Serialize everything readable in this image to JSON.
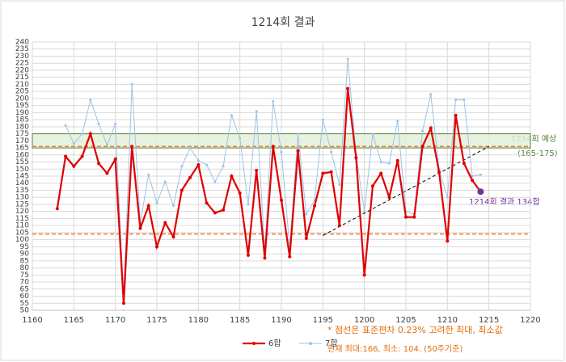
{
  "chart_data": {
    "type": "line",
    "title": "1214회 결과",
    "x": [
      1163,
      1164,
      1165,
      1166,
      1167,
      1168,
      1169,
      1170,
      1171,
      1172,
      1173,
      1174,
      1175,
      1176,
      1177,
      1178,
      1179,
      1180,
      1181,
      1182,
      1183,
      1184,
      1185,
      1186,
      1187,
      1188,
      1189,
      1190,
      1191,
      1192,
      1193,
      1194,
      1195,
      1196,
      1197,
      1198,
      1199,
      1200,
      1201,
      1202,
      1203,
      1204,
      1205,
      1206,
      1207,
      1208,
      1209,
      1210,
      1211,
      1212,
      1213,
      1214
    ],
    "series": [
      {
        "name": "6합",
        "color": "#e00000",
        "values": [
          122,
          159,
          152,
          159,
          175,
          154,
          147,
          157,
          55,
          166,
          108,
          124,
          95,
          112,
          102,
          135,
          144,
          153,
          126,
          119,
          121,
          145,
          133,
          89,
          149,
          87,
          166,
          128,
          88,
          163,
          101,
          124,
          147,
          148,
          110,
          207,
          158,
          75,
          138,
          147,
          130,
          156,
          116,
          116,
          166,
          179,
          148,
          99,
          188,
          154,
          142,
          134
        ]
      },
      {
        "name": "7합",
        "color": "#9dc3e6",
        "values": [
          null,
          181,
          168,
          175,
          199,
          182,
          167,
          182,
          60,
          210,
          112,
          146,
          126,
          141,
          124,
          152,
          165,
          156,
          153,
          141,
          152,
          188,
          172,
          125,
          191,
          92,
          198,
          162,
          95,
          175,
          118,
          128,
          185,
          162,
          139,
          228,
          160,
          120,
          175,
          155,
          154,
          184,
          120,
          118,
          177,
          203,
          150,
          130,
          199,
          199,
          145,
          146
        ]
      }
    ],
    "highlight_color": "#7030a0",
    "xlim": [
      1160,
      1220
    ],
    "xticks": [
      1160,
      1165,
      1170,
      1175,
      1180,
      1185,
      1190,
      1195,
      1200,
      1205,
      1210,
      1215,
      1220
    ],
    "ylim": [
      50,
      240
    ],
    "yticks": [
      50,
      55,
      60,
      65,
      70,
      75,
      80,
      85,
      90,
      95,
      100,
      105,
      110,
      115,
      120,
      125,
      130,
      135,
      140,
      145,
      150,
      155,
      160,
      165,
      170,
      175,
      180,
      185,
      190,
      195,
      200,
      205,
      210,
      215,
      220,
      225,
      230,
      235,
      240
    ],
    "grid": true,
    "upper_line": 166,
    "lower_line": 104,
    "band": [
      165,
      175
    ],
    "trend": {
      "x": [
        1195,
        1215
      ],
      "y": [
        103,
        166
      ]
    },
    "annotations": {
      "forecast": "1214회 예상",
      "forecast_range": "(165-175)",
      "result": "1214회 결과 134합",
      "note": "* 점선은 표준편차 0.23% 고려한 최대, 최소값",
      "current": "현재 최대:166, 최소: 104. (50주기준)"
    }
  }
}
